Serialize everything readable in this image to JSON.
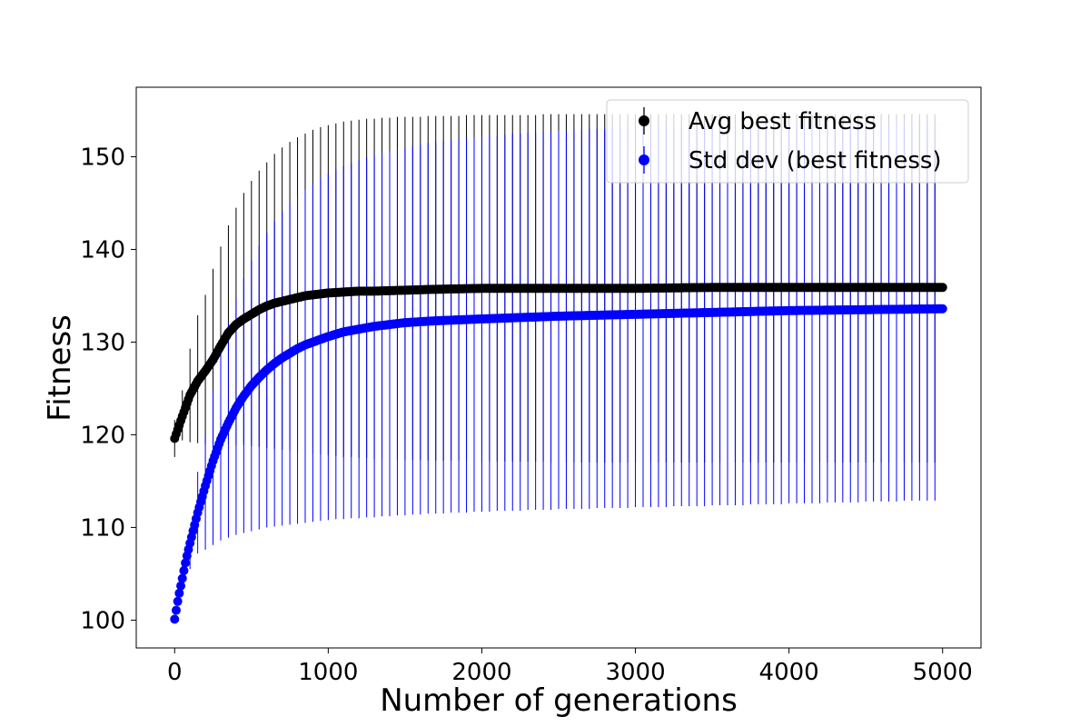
{
  "chart_data": {
    "type": "scatter",
    "title": "",
    "xlabel": "Number of generations",
    "ylabel": "Fitness",
    "xlim": [
      -250,
      5250
    ],
    "ylim": [
      97,
      157.5
    ],
    "xticks": [
      "0",
      "1000",
      "2000",
      "3000",
      "4000",
      "5000"
    ],
    "xtick_values": [
      0,
      1000,
      2000,
      3000,
      4000,
      5000
    ],
    "yticks": [
      "100",
      "110",
      "120",
      "130",
      "140",
      "150"
    ],
    "ytick_values": [
      100,
      110,
      120,
      130,
      140,
      150
    ],
    "grid": false,
    "legend_position": "top-right",
    "series": [
      {
        "name": "Avg best fitness",
        "color": "#000000",
        "x": [
          0,
          50,
          100,
          150,
          200,
          250,
          300,
          350,
          400,
          450,
          500,
          550,
          600,
          650,
          700,
          750,
          800,
          850,
          900,
          950,
          1000,
          1100,
          1200,
          1300,
          1500,
          1700,
          2000,
          2500,
          3000,
          3500,
          4000,
          4500,
          5000
        ],
        "mean": [
          119.6,
          122.0,
          124.3,
          125.8,
          126.9,
          128.1,
          129.6,
          131.0,
          131.9,
          132.5,
          133.0,
          133.5,
          133.9,
          134.2,
          134.4,
          134.6,
          134.8,
          135.0,
          135.1,
          135.2,
          135.3,
          135.4,
          135.5,
          135.5,
          135.6,
          135.7,
          135.8,
          135.8,
          135.8,
          135.9,
          135.9,
          135.9,
          135.9
        ],
        "err_x": [
          0,
          50,
          100,
          150,
          200,
          250,
          300,
          350,
          400,
          450,
          500,
          550,
          600,
          650,
          700,
          750,
          800,
          850,
          900,
          950,
          1000,
          1050,
          1100,
          1150,
          1200,
          1250,
          1300,
          1350,
          1400,
          1450,
          1500,
          1550,
          1600,
          1650,
          1700,
          1750,
          1800,
          1850,
          1900,
          1950,
          2000,
          2050,
          2100,
          2150,
          2200,
          2250,
          2300,
          2350,
          2400,
          2450,
          2500,
          2550,
          2600,
          2650,
          2700,
          2750,
          2800,
          2850,
          2900,
          2950,
          3000,
          3050,
          3100,
          3150,
          3200,
          3250,
          3300,
          3350,
          3400,
          3450,
          3500,
          3550,
          3600,
          3650,
          3700,
          3750,
          3800,
          3850,
          3900,
          3950,
          4000,
          4050,
          4100,
          4150,
          4200,
          4250,
          4300,
          4350,
          4400,
          4450,
          4500,
          4550,
          4600,
          4650,
          4700,
          4750,
          4800,
          4850,
          4900,
          4950
        ],
        "err_low": [
          117.6,
          119.4,
          119.2,
          119.1,
          119.0,
          119.0,
          119.0,
          119.0,
          118.9,
          118.9,
          118.8,
          118.7,
          118.6,
          118.5,
          118.4,
          118.3,
          118.2,
          118.1,
          118.0,
          117.9,
          117.8,
          117.7,
          117.6,
          117.6,
          117.5,
          117.5,
          117.4,
          117.4,
          117.4,
          117.3,
          117.3,
          117.3,
          117.3,
          117.2,
          117.2,
          117.2,
          117.2,
          117.2,
          117.2,
          117.1,
          117.1,
          117.1,
          117.1,
          117.1,
          117.1,
          117.1,
          117.1,
          117.1,
          117.1,
          117.0,
          117.0,
          117.0,
          117.0,
          117.0,
          117.0,
          117.0,
          117.0,
          117.0,
          117.0,
          117.0,
          117.0,
          117.0,
          117.0,
          117.0,
          117.0,
          117.0,
          117.0,
          117.0,
          117.0,
          117.0,
          117.0,
          117.0,
          117.0,
          117.0,
          117.0,
          117.0,
          117.0,
          117.0,
          117.0,
          117.0,
          117.0,
          117.0,
          117.0,
          117.0,
          117.0,
          117.0,
          117.0,
          117.0,
          117.0,
          117.0,
          117.0,
          117.0,
          117.0,
          117.0,
          117.0,
          117.0,
          117.0,
          117.0,
          117.0,
          117.0
        ],
        "err_high": [
          121.6,
          124.8,
          129.3,
          132.9,
          135.1,
          137.9,
          140.3,
          142.6,
          144.5,
          146.1,
          147.4,
          148.5,
          149.4,
          150.3,
          151.0,
          151.6,
          152.1,
          152.5,
          152.9,
          153.2,
          153.4,
          153.6,
          153.8,
          153.9,
          154.0,
          154.1,
          154.1,
          154.2,
          154.2,
          154.3,
          154.3,
          154.3,
          154.3,
          154.4,
          154.4,
          154.4,
          154.4,
          154.4,
          154.5,
          154.5,
          154.5,
          154.5,
          154.5,
          154.5,
          154.5,
          154.5,
          154.5,
          154.5,
          154.6,
          154.6,
          154.6,
          154.6,
          154.6,
          154.6,
          154.6,
          154.6,
          154.6,
          154.6,
          154.6,
          154.6,
          154.6,
          154.6,
          154.6,
          154.6,
          154.6,
          154.6,
          154.6,
          154.6,
          154.6,
          154.6,
          154.6,
          154.6,
          154.6,
          154.6,
          154.6,
          154.6,
          154.6,
          154.6,
          154.6,
          154.6,
          154.6,
          154.6,
          154.6,
          154.6,
          154.6,
          154.6,
          154.6,
          154.6,
          154.6,
          154.6,
          154.6,
          154.6,
          154.6,
          154.6,
          154.6,
          154.6,
          154.6,
          154.6,
          154.6,
          154.6
        ]
      },
      {
        "name": "Std dev (best fitness)",
        "color": "#0000ff",
        "x": [
          0,
          25,
          50,
          75,
          100,
          150,
          200,
          250,
          300,
          350,
          400,
          450,
          500,
          550,
          600,
          650,
          700,
          750,
          800,
          850,
          900,
          950,
          1000,
          1100,
          1200,
          1300,
          1400,
          1500,
          1700,
          2000,
          2500,
          3000,
          3500,
          4000,
          4500,
          5000
        ],
        "mean": [
          100.1,
          102.5,
          104.5,
          106.6,
          108.3,
          111.6,
          114.5,
          117.2,
          119.5,
          121.3,
          122.9,
          124.2,
          125.3,
          126.2,
          127.0,
          127.7,
          128.3,
          128.8,
          129.3,
          129.7,
          130.0,
          130.3,
          130.6,
          131.1,
          131.4,
          131.7,
          131.9,
          132.1,
          132.3,
          132.5,
          132.8,
          133.0,
          133.2,
          133.4,
          133.5,
          133.6
        ],
        "err_x": [
          0,
          50,
          100,
          150,
          200,
          250,
          300,
          350,
          400,
          450,
          500,
          550,
          600,
          650,
          700,
          750,
          800,
          850,
          900,
          950,
          1000,
          1050,
          1100,
          1150,
          1200,
          1250,
          1300,
          1350,
          1400,
          1450,
          1500,
          1550,
          1600,
          1650,
          1700,
          1750,
          1800,
          1850,
          1900,
          1950,
          2000,
          2050,
          2100,
          2150,
          2200,
          2250,
          2300,
          2350,
          2400,
          2450,
          2500,
          2550,
          2600,
          2650,
          2700,
          2750,
          2800,
          2850,
          2900,
          2950,
          3000,
          3050,
          3100,
          3150,
          3200,
          3250,
          3300,
          3350,
          3400,
          3450,
          3500,
          3550,
          3600,
          3650,
          3700,
          3750,
          3800,
          3850,
          3900,
          3950,
          4000,
          4050,
          4100,
          4150,
          4200,
          4250,
          4300,
          4350,
          4400,
          4450,
          4500,
          4550,
          4600,
          4650,
          4700,
          4750,
          4800,
          4850,
          4900,
          4950
        ],
        "err_low": [
          100.0,
          103.0,
          105.5,
          107.2,
          107.6,
          108.1,
          108.6,
          108.9,
          109.2,
          109.4,
          109.6,
          109.8,
          110.0,
          110.1,
          110.2,
          110.3,
          110.4,
          110.5,
          110.6,
          110.7,
          110.8,
          110.9,
          110.9,
          111.0,
          111.0,
          111.1,
          111.1,
          111.2,
          111.2,
          111.3,
          111.3,
          111.4,
          111.4,
          111.5,
          111.5,
          111.5,
          111.6,
          111.6,
          111.6,
          111.7,
          111.7,
          111.7,
          111.8,
          111.8,
          111.8,
          111.8,
          111.9,
          111.9,
          111.9,
          111.9,
          112.0,
          112.0,
          112.0,
          112.0,
          112.0,
          112.1,
          112.1,
          112.1,
          112.1,
          112.1,
          112.2,
          112.2,
          112.2,
          112.2,
          112.2,
          112.3,
          112.3,
          112.3,
          112.3,
          112.3,
          112.4,
          112.4,
          112.4,
          112.4,
          112.4,
          112.5,
          112.5,
          112.5,
          112.5,
          112.5,
          112.6,
          112.6,
          112.6,
          112.6,
          112.6,
          112.7,
          112.7,
          112.7,
          112.7,
          112.7,
          112.8,
          112.8,
          112.8,
          112.8,
          112.8,
          112.9,
          112.9,
          112.9,
          112.9,
          112.9
        ],
        "err_high": [
          100.5,
          106.0,
          110.0,
          116.0,
          120.0,
          124.9,
          128.9,
          132.1,
          134.7,
          136.9,
          138.8,
          140.4,
          141.8,
          143.0,
          144.1,
          145.0,
          145.8,
          146.5,
          147.1,
          147.7,
          148.2,
          148.6,
          149.0,
          149.3,
          149.6,
          149.9,
          150.2,
          150.4,
          150.6,
          150.8,
          151.0,
          151.2,
          151.3,
          151.5,
          151.6,
          151.7,
          151.8,
          151.9,
          152.0,
          152.1,
          152.2,
          152.3,
          152.3,
          152.4,
          152.5,
          152.5,
          152.6,
          152.6,
          152.7,
          152.7,
          152.8,
          152.8,
          152.9,
          152.9,
          153.0,
          153.0,
          153.0,
          153.1,
          153.1,
          153.1,
          153.2,
          153.2,
          153.2,
          153.3,
          153.3,
          153.3,
          153.3,
          153.4,
          153.4,
          153.4,
          153.4,
          153.5,
          153.5,
          153.5,
          153.5,
          153.5,
          153.6,
          153.6,
          153.6,
          153.6,
          153.6,
          153.6,
          153.7,
          153.7,
          153.7,
          153.7,
          153.7,
          153.7,
          153.7,
          153.8,
          153.8,
          153.8,
          153.8,
          153.8,
          153.8,
          153.8,
          153.8,
          153.8,
          153.8,
          153.8
        ]
      }
    ]
  }
}
